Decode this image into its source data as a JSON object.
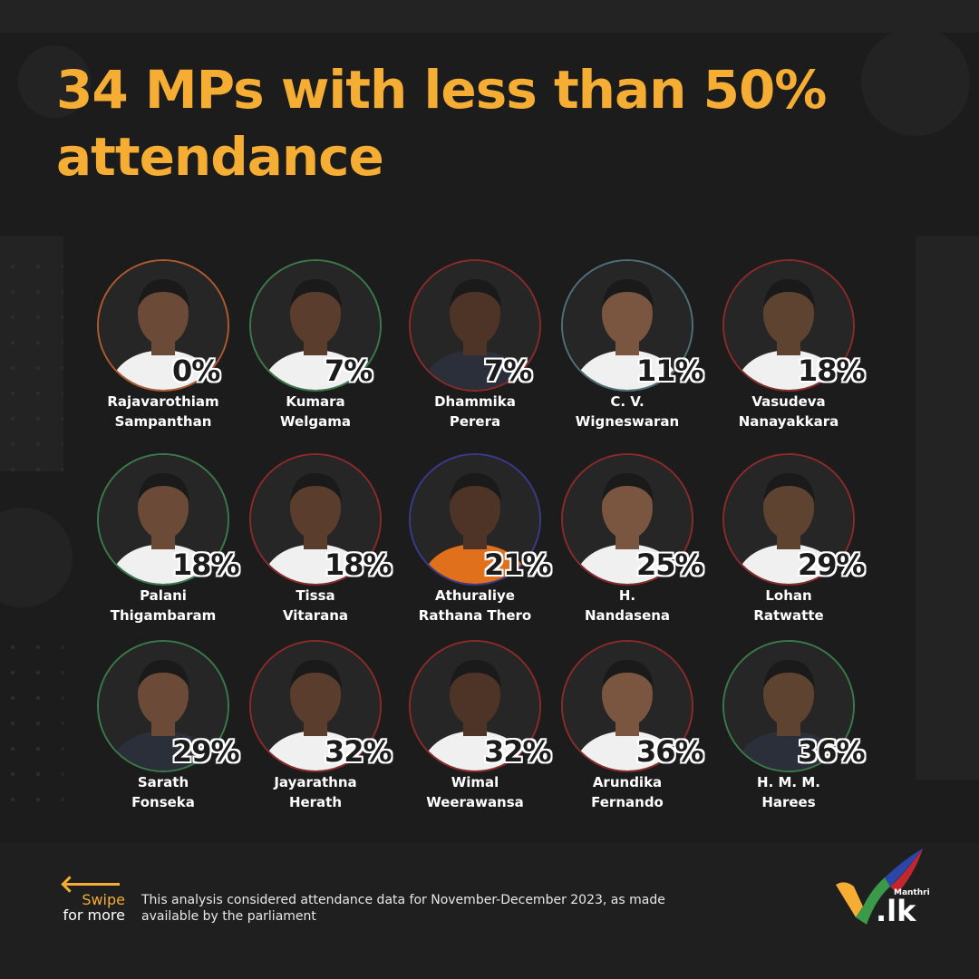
{
  "title": "34 MPs with less than 50% attendance",
  "colors": {
    "accent": "#f6ad34",
    "background": "#1c1c1c"
  },
  "mps": [
    {
      "first": "Rajavarothiam",
      "last": "Sampanthan",
      "attendance": "0%",
      "ring": "#b05a2e"
    },
    {
      "first": "Kumara",
      "last": "Welgama",
      "attendance": "7%",
      "ring": "#3a7a4a"
    },
    {
      "first": "Dhammika",
      "last": "Perera",
      "attendance": "7%",
      "ring": "#8a2a2a"
    },
    {
      "first": "C. V.",
      "last": "Wigneswaran",
      "attendance": "11%",
      "ring": "#4f6f78"
    },
    {
      "first": "Vasudeva",
      "last": "Nanayakkara",
      "attendance": "18%",
      "ring": "#8a2a2a"
    },
    {
      "first": "Palani",
      "last": "Thigambaram",
      "attendance": "18%",
      "ring": "#3a7a4a"
    },
    {
      "first": "Tissa",
      "last": "Vitarana",
      "attendance": "18%",
      "ring": "#8a2a2a"
    },
    {
      "first": "Athuraliye",
      "last": "Rathana Thero",
      "attendance": "21%",
      "ring": "#3a3a8a"
    },
    {
      "first": "H.",
      "last": "Nandasena",
      "attendance": "25%",
      "ring": "#8a2a2a"
    },
    {
      "first": "Lohan",
      "last": "Ratwatte",
      "attendance": "29%",
      "ring": "#8a2a2a"
    },
    {
      "first": "Sarath",
      "last": "Fonseka",
      "attendance": "29%",
      "ring": "#3a7a4a"
    },
    {
      "first": "Jayarathna",
      "last": "Herath",
      "attendance": "32%",
      "ring": "#8a2a2a"
    },
    {
      "first": "Wimal",
      "last": "Weerawansa",
      "attendance": "32%",
      "ring": "#8a2a2a"
    },
    {
      "first": "Arundika",
      "last": "Fernando",
      "attendance": "36%",
      "ring": "#8a2a2a"
    },
    {
      "first": "H. M. M.",
      "last": "Harees",
      "attendance": "36%",
      "ring": "#3a7a4a"
    }
  ],
  "swipe": {
    "line1": "Swipe",
    "line2": "for more"
  },
  "footnote": "This analysis considered attendance data for November-December 2023, as made available by the parliament",
  "logo": {
    "small": "Manthri",
    "big": ".lk"
  }
}
